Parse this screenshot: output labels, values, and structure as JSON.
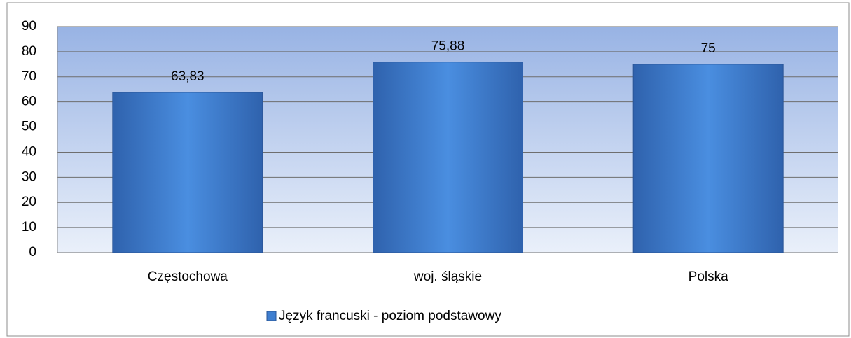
{
  "chart_data": {
    "type": "bar",
    "categories": [
      "Częstochowa",
      "woj. śląskie",
      "Polska"
    ],
    "series": [
      {
        "name": "Język francuski - poziom podstawowy",
        "color": "#3f7fd0",
        "values": [
          63.83,
          75.88,
          75
        ],
        "value_labels": [
          "63,83",
          "75,88",
          "75"
        ]
      }
    ],
    "ylim": [
      0,
      90
    ],
    "yticks": [
      0,
      10,
      20,
      30,
      40,
      50,
      60,
      70,
      80,
      90
    ],
    "grid": true,
    "legend": "bottom"
  }
}
